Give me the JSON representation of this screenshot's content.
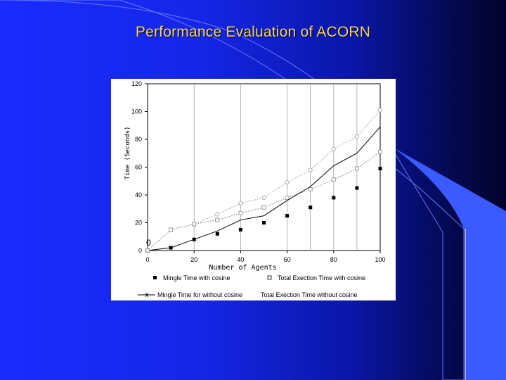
{
  "slide": {
    "title": "Performance Evaluation of ACORN"
  },
  "colors": {
    "background": "#1526e6",
    "title": "#f3d27a",
    "accent_shape": "#3b5bff"
  },
  "chart_data": {
    "type": "line",
    "title": "",
    "xlabel": "Number of Agents",
    "ylabel": "Time (Seconds)",
    "xlim": [
      0,
      100
    ],
    "ylim": [
      0,
      120
    ],
    "xticks": [
      0,
      20,
      40,
      60,
      80,
      100
    ],
    "yticks": [
      0,
      20,
      40,
      60,
      80,
      100,
      120
    ],
    "annotation": "0",
    "grid": "vertical",
    "legend_position": "bottom",
    "series": [
      {
        "name": "Mingle Time with cosine",
        "marker": "filled-square",
        "line": "none",
        "x": [
          0,
          10,
          20,
          30,
          40,
          50,
          60,
          70,
          80,
          90,
          100
        ],
        "y": [
          0,
          2,
          8,
          12,
          15,
          20,
          25,
          31,
          38,
          45,
          59
        ]
      },
      {
        "name": "Total Exection Time with cosine",
        "marker": "open-square",
        "line": "dotted",
        "x": [
          0,
          10,
          20,
          30,
          40,
          50,
          60,
          70,
          80,
          90,
          100
        ],
        "y": [
          0,
          15,
          19,
          22,
          27,
          31,
          38,
          44,
          51,
          59,
          71
        ]
      },
      {
        "name": "Mingle Time for without cosine",
        "marker": "none",
        "line": "solid",
        "x": [
          0,
          10,
          20,
          30,
          40,
          50,
          60,
          70,
          80,
          90,
          100
        ],
        "y": [
          0,
          2,
          8,
          14,
          22,
          25,
          36,
          46,
          61,
          70,
          89
        ]
      },
      {
        "name": "Total Exection Time without cosine",
        "marker": "open-circle",
        "line": "dotted",
        "x": [
          0,
          10,
          20,
          30,
          40,
          50,
          60,
          70,
          80,
          90,
          100
        ],
        "y": [
          0,
          15,
          19,
          26,
          34,
          38,
          49,
          58,
          73,
          82,
          101
        ]
      }
    ]
  }
}
